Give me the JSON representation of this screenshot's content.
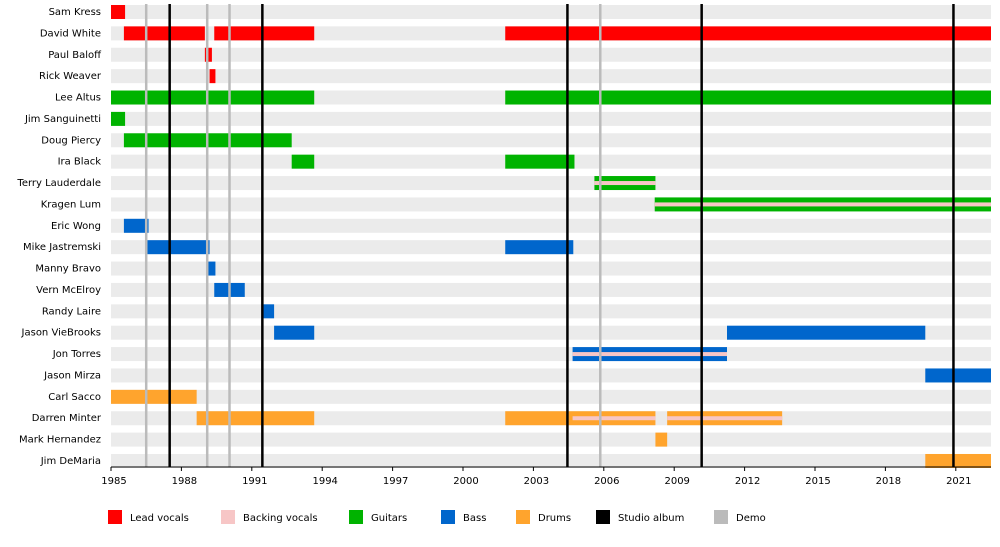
{
  "chart_data": {
    "type": "timeline",
    "xlim": [
      1985,
      2022.5
    ],
    "xticks": [
      1985,
      1988,
      1991,
      1994,
      1997,
      2000,
      2003,
      2006,
      2009,
      2012,
      2015,
      2018,
      2021
    ],
    "series": [
      {
        "name": "Lead vocals",
        "color": "#ff0000"
      },
      {
        "name": "Backing vocals",
        "color": "#f7c6c6"
      },
      {
        "name": "Guitars",
        "color": "#00b300"
      },
      {
        "name": "Bass",
        "color": "#0066cc"
      },
      {
        "name": "Drums",
        "color": "#ffa42d"
      },
      {
        "name": "Studio album",
        "color": "#000000",
        "values": [
          1987.5,
          1991.45,
          2004.45,
          2010.17,
          2020.9
        ]
      },
      {
        "name": "Demo",
        "color": "#bbbbbb",
        "values": [
          1986.5,
          1989.1,
          1990.05,
          2005.85
        ]
      }
    ],
    "members": [
      {
        "name": "Sam Kress",
        "bars": [
          {
            "role": "Lead vocals",
            "start": 1985,
            "end": 1985.6
          }
        ]
      },
      {
        "name": "David White",
        "bars": [
          {
            "role": "Lead vocals",
            "start": 1985.55,
            "end": 1989
          },
          {
            "role": "Lead vocals",
            "start": 1989.4,
            "end": 1993.66
          },
          {
            "role": "Lead vocals",
            "start": 2001.8,
            "end": 2022.5
          }
        ]
      },
      {
        "name": "Paul Baloff",
        "bars": [
          {
            "role": "Lead vocals",
            "start": 1989,
            "end": 1989.3
          }
        ]
      },
      {
        "name": "Rick Weaver",
        "bars": [
          {
            "role": "Lead vocals",
            "start": 1989.2,
            "end": 1989.45
          }
        ]
      },
      {
        "name": "Lee Altus",
        "bars": [
          {
            "role": "Guitars",
            "start": 1985,
            "end": 1993.66
          },
          {
            "role": "Guitars",
            "start": 2001.8,
            "end": 2022.5
          }
        ]
      },
      {
        "name": "Jim Sanguinetti",
        "bars": [
          {
            "role": "Guitars",
            "start": 1985,
            "end": 1985.6
          }
        ]
      },
      {
        "name": "Doug Piercy",
        "bars": [
          {
            "role": "Guitars",
            "start": 1985.55,
            "end": 1992.7
          }
        ]
      },
      {
        "name": "Ira Black",
        "bars": [
          {
            "role": "Guitars",
            "start": 1992.7,
            "end": 1993.66
          },
          {
            "role": "Guitars",
            "start": 2001.8,
            "end": 2004.75
          }
        ]
      },
      {
        "name": "Terry Lauderdale",
        "bars": [
          {
            "role": "Guitars",
            "start": 2005.6,
            "end": 2008.2
          },
          {
            "role": "Backing vocals",
            "start": 2005.6,
            "end": 2008.2
          }
        ]
      },
      {
        "name": "Kragen Lum",
        "bars": [
          {
            "role": "Guitars",
            "start": 2008.17,
            "end": 2022.5
          },
          {
            "role": "Backing vocals",
            "start": 2008.17,
            "end": 2022.5
          }
        ]
      },
      {
        "name": "Eric Wong",
        "bars": [
          {
            "role": "Bass",
            "start": 1985.55,
            "end": 1986.6
          }
        ]
      },
      {
        "name": "Mike Jastremski",
        "bars": [
          {
            "role": "Bass",
            "start": 1986.55,
            "end": 1989.2
          },
          {
            "role": "Bass",
            "start": 2001.8,
            "end": 2004.7
          }
        ]
      },
      {
        "name": "Manny Bravo",
        "bars": [
          {
            "role": "Bass",
            "start": 1989.1,
            "end": 1989.45
          }
        ]
      },
      {
        "name": "Vern McElroy",
        "bars": [
          {
            "role": "Bass",
            "start": 1989.4,
            "end": 1990.7
          }
        ]
      },
      {
        "name": "Randy Laire",
        "bars": [
          {
            "role": "Bass",
            "start": 1991.5,
            "end": 1991.95
          }
        ]
      },
      {
        "name": "Jason VieBrooks",
        "bars": [
          {
            "role": "Bass",
            "start": 1991.95,
            "end": 1993.66
          },
          {
            "role": "Bass",
            "start": 2011.25,
            "end": 2019.7
          }
        ]
      },
      {
        "name": "Jon Torres",
        "bars": [
          {
            "role": "Bass",
            "start": 2004.67,
            "end": 2011.25
          },
          {
            "role": "Backing vocals",
            "start": 2004.67,
            "end": 2011.25
          }
        ]
      },
      {
        "name": "Jason Mirza",
        "bars": [
          {
            "role": "Bass",
            "start": 2019.7,
            "end": 2022.5
          }
        ]
      },
      {
        "name": "Carl Sacco",
        "bars": [
          {
            "role": "Drums",
            "start": 1985,
            "end": 1988.65
          }
        ]
      },
      {
        "name": "Darren Minter",
        "bars": [
          {
            "role": "Drums",
            "start": 1988.65,
            "end": 1993.66
          },
          {
            "role": "Drums",
            "start": 2001.8,
            "end": 2008.2
          },
          {
            "role": "Backing vocals",
            "start": 2004.67,
            "end": 2008.2
          },
          {
            "role": "Drums",
            "start": 2008.7,
            "end": 2013.6
          },
          {
            "role": "Backing vocals",
            "start": 2008.7,
            "end": 2013.6
          }
        ]
      },
      {
        "name": "Mark Hernandez",
        "bars": [
          {
            "role": "Drums",
            "start": 2008.2,
            "end": 2008.7
          }
        ]
      },
      {
        "name": "Jim DeMaria",
        "bars": [
          {
            "role": "Drums",
            "start": 2019.7,
            "end": 2022.5
          }
        ]
      }
    ]
  }
}
